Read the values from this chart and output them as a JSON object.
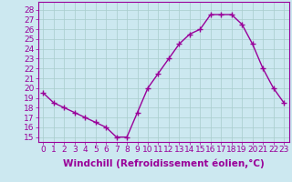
{
  "hours": [
    0,
    1,
    2,
    3,
    4,
    5,
    6,
    7,
    8,
    9,
    10,
    11,
    12,
    13,
    14,
    15,
    16,
    17,
    18,
    19,
    20,
    21,
    22,
    23
  ],
  "values": [
    19.5,
    18.5,
    18.0,
    17.5,
    17.0,
    16.5,
    16.0,
    15.0,
    15.0,
    17.5,
    20.0,
    21.5,
    23.0,
    24.5,
    25.5,
    26.0,
    27.5,
    27.5,
    27.5,
    26.5,
    24.5,
    22.0,
    20.0,
    18.5
  ],
  "line_color": "#990099",
  "marker": "+",
  "marker_size": 4,
  "marker_linewidth": 1.0,
  "line_width": 1.0,
  "xlabel": "Windchill (Refroidissement éolien,°C)",
  "ylabel_left_ticks": [
    15,
    16,
    17,
    18,
    19,
    20,
    21,
    22,
    23,
    24,
    25,
    26,
    27,
    28
  ],
  "ylim": [
    14.5,
    28.8
  ],
  "xlim": [
    -0.5,
    23.5
  ],
  "background_color": "#cce8f0",
  "grid_color": "#a8cccc",
  "tick_label_fontsize": 6.5,
  "xlabel_fontsize": 7.5,
  "title": ""
}
